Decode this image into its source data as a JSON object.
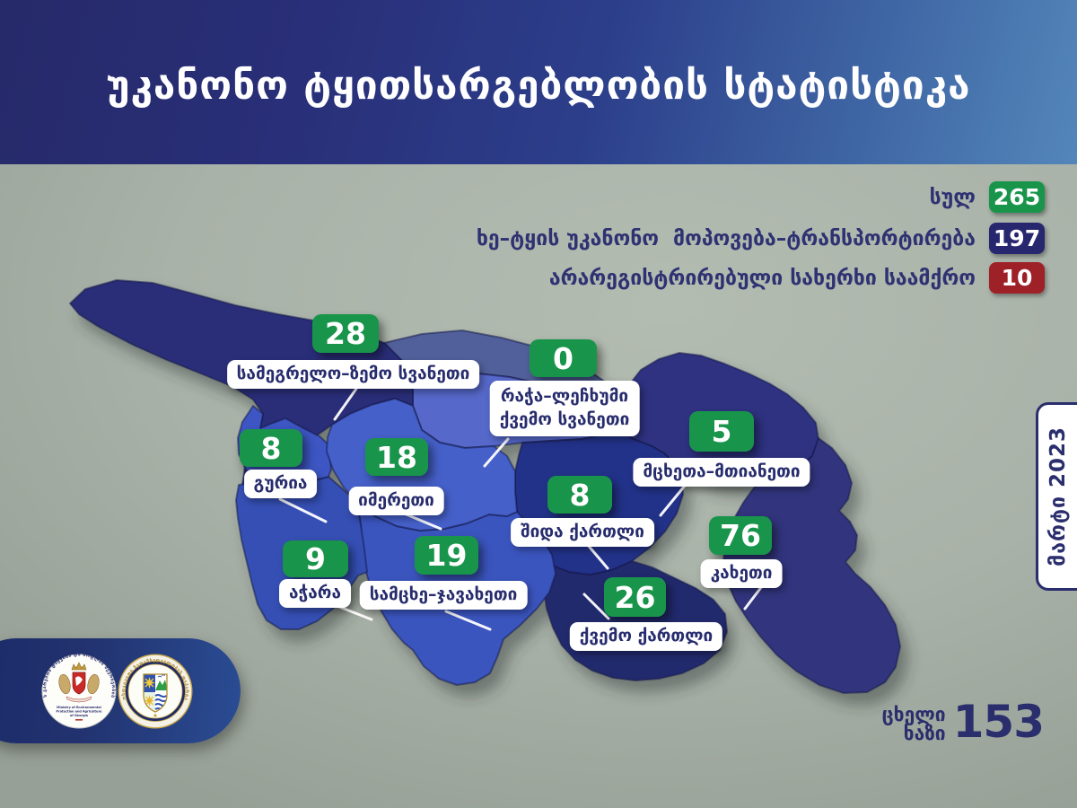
{
  "header": {
    "title": "უკანონო ტყითსარგებლობის სტატისტიკა"
  },
  "legend": {
    "items": [
      {
        "label": "სულ",
        "value": "265",
        "color": "#19954b"
      },
      {
        "label": "ხე–ტყის უკანონო  მოპოვება–ტრანსპორტირება",
        "value": "197",
        "color": "#27276f"
      },
      {
        "label": "არარეგისტრირებული სახერხი საამქრო",
        "value": "10",
        "color": "#9e2127"
      }
    ]
  },
  "map": {
    "badge_color": "#19954b",
    "mountain_band_color": "#51619b",
    "regions": [
      {
        "id": "samegrelo",
        "name": "სამეგრელო–ზემო სვანეთი",
        "value": "28",
        "color": "#2c2f79"
      },
      {
        "id": "racha",
        "name": "რაჭა–ლეჩხუმი ქვემო სვანეთი",
        "name_lines": [
          "რაჭა–ლეჩხუმი",
          "ქვემო სვანეთი"
        ],
        "value": "0",
        "color": "#5767c9"
      },
      {
        "id": "guria",
        "name": "გურია",
        "value": "8",
        "color": "#3c57c3"
      },
      {
        "id": "imereti",
        "name": "იმერეთი",
        "value": "18",
        "color": "#4560c9"
      },
      {
        "id": "adjara",
        "name": "აჭარა",
        "value": "9",
        "color": "#3550b4"
      },
      {
        "id": "samtskhe",
        "name": "სამცხე–ჯავახეთი",
        "value": "19",
        "color": "#3a55bf"
      },
      {
        "id": "shida",
        "name": "შიდა ქართლი",
        "value": "8",
        "color": "#243089"
      },
      {
        "id": "mtskheta",
        "name": "მცხეთა–მთიანეთი",
        "value": "5",
        "color": "#2e3380"
      },
      {
        "id": "kvemo",
        "name": "ქვემო ქართლი",
        "value": "26",
        "color": "#242a6e"
      },
      {
        "id": "kakheti",
        "name": "კახეთი",
        "value": "76",
        "color": "#31357e"
      }
    ]
  },
  "side_tab": {
    "label": "მარტი 2023"
  },
  "hotline": {
    "line1": "ცხელი",
    "line2": "ხაზი",
    "number": "153"
  },
  "logos": {
    "ministry": {
      "arc_text": "საქართველოს გარემოს დაცვისა და სოფლის მეურნეობის სამინისტრო",
      "caption_lines": [
        "Ministry of Environmental",
        "Protection and Agriculture",
        "of Georgia"
      ]
    },
    "supervision": {
      "arc_text": "გარემოსდაცვითი ზედამხედველობის დეპარტამენტი"
    }
  },
  "chart_data": {
    "type": "table",
    "title": "უკანონო ტყითსარგებლობის სტატისტიკა",
    "period": "მარტი 2023",
    "legend": [
      {
        "label": "სულ",
        "value": 265
      },
      {
        "label": "ხე–ტყის უკანონო მოპოვება–ტრანსპორტირება",
        "value": 197
      },
      {
        "label": "არარეგისტრირებული სახერხი საამქრო",
        "value": 10
      }
    ],
    "categories": [
      "სამეგრელო–ზემო სვანეთი",
      "რაჭა–ლეჩხუმი ქვემო სვანეთი",
      "გურია",
      "იმერეთი",
      "აჭარა",
      "სამცხე–ჯავახეთი",
      "შიდა ქართლი",
      "მცხეთა–მთიანეთი",
      "ქვემო ქართლი",
      "კახეთი"
    ],
    "values": [
      28,
      0,
      8,
      18,
      9,
      19,
      8,
      5,
      26,
      76
    ],
    "hotline": 153
  }
}
